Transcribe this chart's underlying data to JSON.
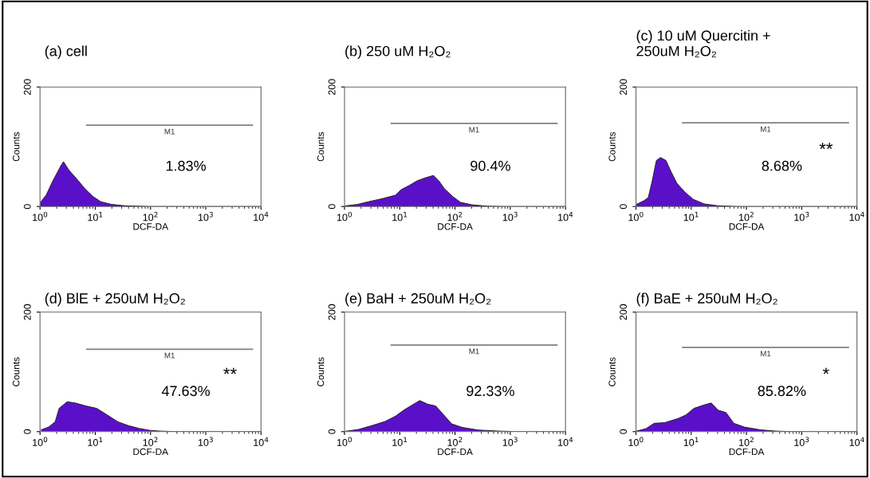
{
  "chart_data": [
    {
      "type": "area",
      "title": "(a) cell",
      "xlabel": "DCF-DA",
      "ylabel": "Counts",
      "log": "x",
      "xlim": [
        1,
        10000
      ],
      "ylim": [
        0,
        200
      ],
      "xticks": [
        {
          "value": 1,
          "label": "10$^{0}$"
        },
        {
          "value": 10,
          "label": "10$^{1}$"
        },
        {
          "value": 100,
          "label": "10$^{2}$"
        },
        {
          "value": 1000,
          "label": "10$^{3}$"
        },
        {
          "value": 10000,
          "label": "10$^{4}$"
        }
      ],
      "yticks": [
        0,
        200
      ],
      "annotations": [
        "1.83%"
      ],
      "series": [
        {
          "type": "line",
          "name": "M1",
          "color": "#808080",
          "x": [
            7,
            7000
          ],
          "values": [
            136,
            136
          ]
        },
        {
          "color": "#5a10c8",
          "x": [
            1,
            1.29,
            1.71,
            2.38,
            2.66,
            3.33,
            4.64,
            6.47,
            9.0,
            12.6,
            19.7,
            34,
            60,
            100,
            10000
          ],
          "values": [
            6,
            19,
            43,
            68,
            75,
            61,
            46,
            30,
            17,
            8,
            3.5,
            1.3,
            0.5,
            0,
            0
          ]
        }
      ]
    },
    {
      "type": "area",
      "title": "(b) 250 uM H₂O₂",
      "xlabel": "DCF-DA",
      "ylabel": "Counts",
      "log": "x",
      "xlim": [
        1,
        10000
      ],
      "ylim": [
        0,
        200
      ],
      "xticks": [
        {
          "value": 1,
          "label": "10$^{0}$"
        },
        {
          "value": 10,
          "label": "10$^{1}$"
        },
        {
          "value": 100,
          "label": "10$^{2}$"
        },
        {
          "value": 1000,
          "label": "10$^{3}$"
        },
        {
          "value": 10000,
          "label": "10$^{4}$"
        }
      ],
      "yticks": [
        0,
        200
      ],
      "annotations": [
        "90.4%"
      ],
      "series": [
        {
          "type": "line",
          "name": "M1",
          "color": "#808080",
          "x": [
            7,
            7000
          ],
          "values": [
            139,
            139
          ]
        },
        {
          "color": "#5a10c8",
          "x": [
            1.03,
            1.72,
            2.7,
            4.76,
            8.4,
            10.5,
            14.7,
            20.6,
            29,
            40.7,
            51,
            64,
            90,
            126,
            198,
            390,
            770,
            10000
          ],
          "values": [
            1,
            3.5,
            8,
            13,
            19,
            28,
            35,
            43,
            48,
            52,
            43,
            30,
            17,
            7,
            3,
            0.5,
            0,
            0
          ]
        }
      ]
    },
    {
      "type": "area",
      "title": "(c) 10 uM Quercitin +\n250uM H₂O₂",
      "xlabel": "DCF-DA",
      "ylabel": "Counts",
      "log": "x",
      "xlim": [
        1,
        10000
      ],
      "ylim": [
        0,
        200
      ],
      "xticks": [
        {
          "value": 1,
          "label": "10$^{0}$"
        },
        {
          "value": 10,
          "label": "10$^{1}$"
        },
        {
          "value": 100,
          "label": "10$^{2}$"
        },
        {
          "value": 1000,
          "label": "10$^{3}$"
        },
        {
          "value": 10000,
          "label": "10$^{4}$"
        }
      ],
      "yticks": [
        0,
        200
      ],
      "annotations": [
        "8.68%",
        "**"
      ],
      "series": [
        {
          "type": "line",
          "name": "M1",
          "color": "#808080",
          "x": [
            7,
            7000
          ],
          "values": [
            140,
            140
          ]
        },
        {
          "color": "#5a10c8",
          "x": [
            1.02,
            1.41,
            1.67,
            1.98,
            2.34,
            2.78,
            3.49,
            4.38,
            5.5,
            7.7,
            10.9,
            17.1,
            30,
            67,
            10000
          ],
          "values": [
            3.5,
            10,
            15,
            44,
            77,
            82,
            77,
            57,
            39,
            24,
            12,
            4.4,
            1.3,
            0,
            0
          ]
        }
      ]
    },
    {
      "type": "area",
      "title": "(d) BlE + 250uM H₂O₂",
      "xlabel": "DCF-DA",
      "ylabel": "Counts",
      "log": "x",
      "xlim": [
        1,
        10000
      ],
      "ylim": [
        0,
        200
      ],
      "xticks": [
        {
          "value": 1,
          "label": "10$^{0}$"
        },
        {
          "value": 10,
          "label": "10$^{1}$"
        },
        {
          "value": 100,
          "label": "10$^{2}$"
        },
        {
          "value": 1000,
          "label": "10$^{3}$"
        },
        {
          "value": 10000,
          "label": "10$^{4}$"
        }
      ],
      "yticks": [
        0,
        200
      ],
      "annotations": [
        "47.63%",
        "**"
      ],
      "series": [
        {
          "type": "line",
          "name": "M1",
          "color": "#808080",
          "x": [
            7,
            7000
          ],
          "values": [
            138,
            138
          ]
        },
        {
          "color": "#5a10c8",
          "x": [
            1.05,
            1.43,
            1.88,
            2.22,
            3.1,
            4.33,
            6.76,
            10.6,
            16.4,
            25.7,
            40,
            62,
            97,
            150,
            295,
            10000
          ],
          "values": [
            3,
            7.6,
            16.5,
            39,
            50,
            48,
            43,
            39,
            28,
            16.5,
            10,
            5.4,
            2.2,
            0.9,
            0,
            0
          ]
        }
      ]
    },
    {
      "type": "area",
      "title": "(e) BaH + 250uM H₂O₂",
      "xlabel": "DCF-DA",
      "ylabel": "Counts",
      "log": "x",
      "xlim": [
        1,
        10000
      ],
      "ylim": [
        0,
        200
      ],
      "xticks": [
        {
          "value": 1,
          "label": "10$^{0}$"
        },
        {
          "value": 10,
          "label": "10$^{1}$"
        },
        {
          "value": 100,
          "label": "10$^{2}$"
        },
        {
          "value": 1000,
          "label": "10$^{3}$"
        },
        {
          "value": 10000,
          "label": "10$^{4}$"
        }
      ],
      "yticks": [
        0,
        200
      ],
      "annotations": [
        "92.33%"
      ],
      "series": [
        {
          "type": "line",
          "name": "M1",
          "color": "#808080",
          "x": [
            7,
            7000
          ],
          "values": [
            145,
            145
          ]
        },
        {
          "color": "#5a10c8",
          "x": [
            1.02,
            1.78,
            3.1,
            5.4,
            8.4,
            11.8,
            16.4,
            23,
            32,
            44.6,
            62.5,
            87,
            136,
            264,
            644,
            1400,
            10000
          ],
          "values": [
            0.5,
            3.6,
            10,
            17,
            26,
            36,
            44,
            52,
            46,
            43,
            28,
            13,
            7,
            2.7,
            0.9,
            0,
            0
          ]
        }
      ]
    },
    {
      "type": "area",
      "title": "(f) BaE + 250uM H₂O₂",
      "xlabel": "DCF-DA",
      "ylabel": "Counts",
      "log": "x",
      "xlim": [
        1,
        10000
      ],
      "ylim": [
        0,
        200
      ],
      "xticks": [
        {
          "value": 1,
          "label": "10$^{0}$"
        },
        {
          "value": 10,
          "label": "10$^{1}$"
        },
        {
          "value": 100,
          "label": "10$^{2}$"
        },
        {
          "value": 1000,
          "label": "10$^{3}$"
        },
        {
          "value": 10000,
          "label": "10$^{4}$"
        }
      ],
      "yticks": [
        0,
        200
      ],
      "annotations": [
        "85.82%",
        "*"
      ],
      "series": [
        {
          "type": "line",
          "name": "M1",
          "color": "#808080",
          "x": [
            7,
            7000
          ],
          "values": [
            141,
            141
          ]
        },
        {
          "color": "#5a10c8",
          "x": [
            1.03,
            1.52,
            2.13,
            3.3,
            5.8,
            8.05,
            11.2,
            17.5,
            23,
            30.6,
            42.6,
            59,
            92,
            180,
            350,
            680,
            10000
          ],
          "values": [
            1,
            5,
            14,
            15,
            22,
            28,
            39,
            45,
            48,
            36,
            32,
            14,
            7.6,
            3,
            0.9,
            0,
            0
          ]
        }
      ]
    }
  ]
}
